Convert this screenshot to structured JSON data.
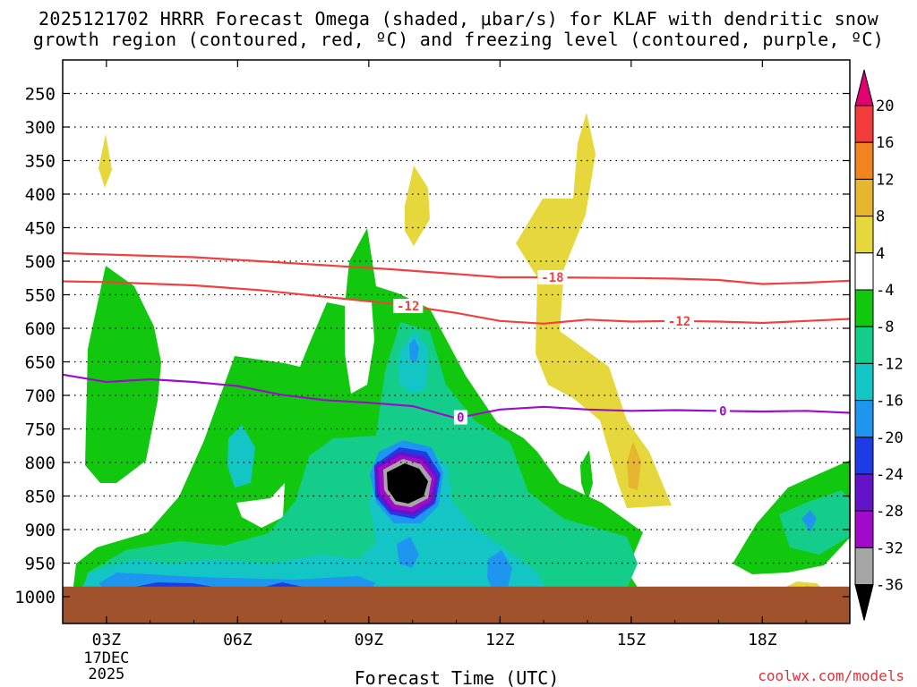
{
  "title": {
    "line1": "2025121702 HRRR Forecast Omega (shaded, μbar/s) for KLAF with dendritic snow",
    "line2": "growth region (contoured, red, ºC) and freezing level (contoured, purple, ºC)"
  },
  "credit": "coolwx.com/models",
  "chart_data": {
    "type": "contour",
    "xlabel": "Forecast Time (UTC)",
    "x_ticks": [
      {
        "hour": 3,
        "label": "03Z",
        "sub": [
          "17DEC",
          "2025"
        ]
      },
      {
        "hour": 6,
        "label": "06Z"
      },
      {
        "hour": 9,
        "label": "09Z"
      },
      {
        "hour": 12,
        "label": "12Z"
      },
      {
        "hour": 15,
        "label": "15Z"
      },
      {
        "hour": 18,
        "label": "18Z"
      }
    ],
    "xlim": [
      2,
      20
    ],
    "ylabel": "",
    "y_levels": [
      250,
      300,
      350,
      400,
      450,
      500,
      550,
      600,
      650,
      700,
      750,
      800,
      850,
      900,
      950,
      1000
    ],
    "ylim": [
      200,
      1040
    ],
    "grid": true,
    "colorbar": {
      "labels": [
        "20",
        "16",
        "12",
        "8",
        "4",
        "-4",
        "-8",
        "-12",
        "-16",
        "-20",
        "-24",
        "-28",
        "-32",
        "-36"
      ],
      "colors": [
        "#e00070",
        "#f23c3c",
        "#ef8420",
        "#e6b630",
        "#e6d83c",
        "#ffffff",
        "#11c80f",
        "#15cd8a",
        "#14c5c5",
        "#1e96f0",
        "#1e3ce6",
        "#6414c8",
        "#a00ac8",
        "#a6a6a6",
        "#000000"
      ]
    },
    "contours": [
      {
        "name": "",
        "color": "#f04040",
        "points": [
          [
            2,
            488
          ],
          [
            3,
            490
          ],
          [
            5,
            494
          ],
          [
            6.5,
            500
          ],
          [
            8,
            506
          ],
          [
            9.5,
            512
          ],
          [
            11,
            519
          ],
          [
            12,
            524
          ],
          [
            13,
            524
          ],
          [
            15,
            525
          ],
          [
            16,
            526
          ],
          [
            17,
            528
          ],
          [
            18,
            534
          ],
          [
            19,
            532
          ],
          [
            20,
            529
          ]
        ],
        "labels": [
          {
            "text": "-18",
            "x": 13.2
          }
        ]
      },
      {
        "name": "",
        "color": "#f04040",
        "points": [
          [
            2,
            530
          ],
          [
            3,
            531
          ],
          [
            5,
            536
          ],
          [
            6.5,
            543
          ],
          [
            8,
            553
          ],
          [
            9.5,
            563
          ],
          [
            11,
            577
          ],
          [
            12,
            589
          ],
          [
            13,
            593
          ],
          [
            14,
            587
          ],
          [
            15,
            590
          ],
          [
            16,
            589
          ],
          [
            17,
            590
          ],
          [
            18,
            592
          ],
          [
            19,
            589
          ],
          [
            20,
            586
          ]
        ],
        "labels": [
          {
            "text": "-12",
            "x": 9.9
          },
          {
            "text": "-12",
            "x": 16.1
          }
        ]
      },
      {
        "name": "",
        "color": "#9910c8",
        "points": [
          [
            2,
            669
          ],
          [
            3,
            680
          ],
          [
            4,
            676
          ],
          [
            5,
            680
          ],
          [
            6,
            686
          ],
          [
            7,
            699
          ],
          [
            8,
            707
          ],
          [
            9,
            711
          ],
          [
            10,
            716
          ],
          [
            11,
            734
          ],
          [
            12,
            721
          ],
          [
            13,
            717
          ],
          [
            14,
            721
          ],
          [
            15,
            723
          ],
          [
            16,
            722
          ],
          [
            17,
            723
          ],
          [
            18,
            724
          ],
          [
            19,
            723
          ],
          [
            20,
            726
          ]
        ],
        "labels": [
          {
            "text": "0",
            "x": 11.1
          },
          {
            "text": "0",
            "x": 17.1
          }
        ]
      }
    ],
    "terrain": {
      "color": "#a0522d",
      "top_level": 985
    }
  },
  "colors": {
    "green": "#11c80f",
    "teal": "#15cd8a",
    "cyan": "#14c5c5",
    "blue": "#1e96f0",
    "dkblue": "#1e3ce6",
    "purple": "#6414c8",
    "violet": "#a00ac8",
    "gray": "#a6a6a6",
    "yellow": "#e6d83c",
    "gold": "#e6b630",
    "orange": "#ef8420"
  }
}
